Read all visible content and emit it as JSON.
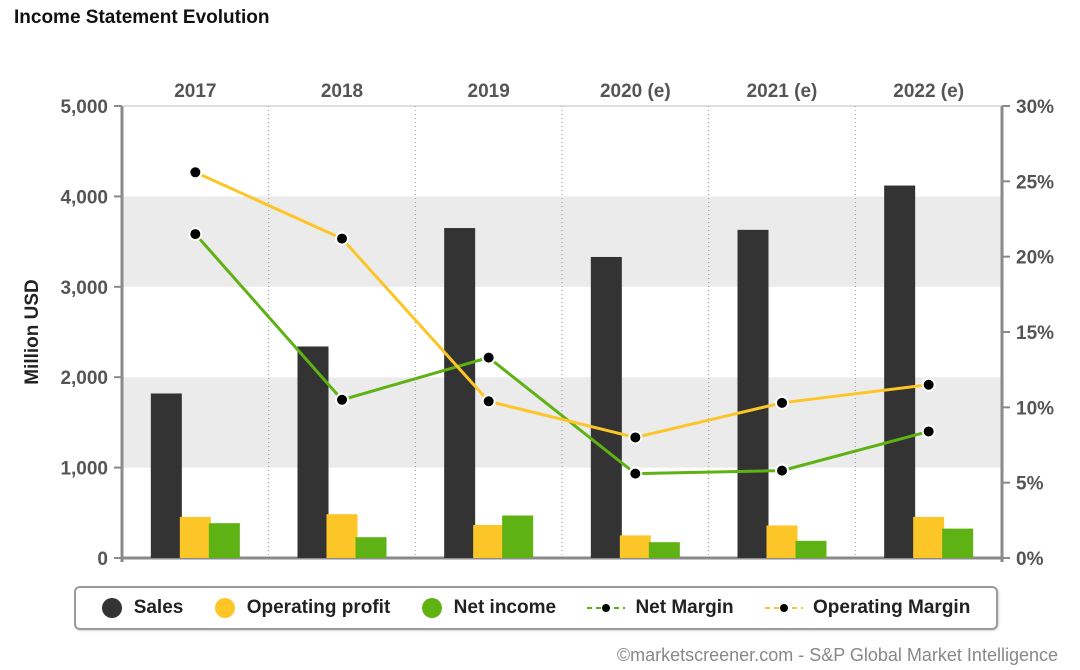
{
  "chart_data": {
    "type": "bar",
    "title": "Income Statement Evolution",
    "categories": [
      "2017",
      "2018",
      "2019",
      "2020 (e)",
      "2021 (e)",
      "2022 (e)"
    ],
    "ylabel": "Million USD",
    "ylim": [
      0,
      5000
    ],
    "y_ticks": [
      "0",
      "1,000",
      "2,000",
      "3,000",
      "4,000",
      "5,000"
    ],
    "y2lim": [
      0,
      30
    ],
    "y2_ticks": [
      "0%",
      "5%",
      "10%",
      "15%",
      "20%",
      "25%",
      "30%"
    ],
    "series": [
      {
        "name": "Sales",
        "kind": "bar",
        "axis": "left",
        "color": "#333333",
        "values": [
          1820,
          2340,
          3650,
          3330,
          3630,
          4120
        ]
      },
      {
        "name": "Operating profit",
        "kind": "bar",
        "axis": "left",
        "color": "#FCC629",
        "values": [
          455,
          485,
          365,
          250,
          360,
          455
        ]
      },
      {
        "name": "Net income",
        "kind": "bar",
        "axis": "left",
        "color": "#5FB214",
        "values": [
          385,
          230,
          470,
          175,
          190,
          325
        ]
      },
      {
        "name": "Net Margin",
        "kind": "line",
        "axis": "right",
        "color": "#5FB214",
        "values": [
          21.5,
          10.5,
          13.3,
          5.6,
          5.8,
          8.4
        ]
      },
      {
        "name": "Operating Margin",
        "kind": "line",
        "axis": "right",
        "color": "#FCC629",
        "values": [
          25.6,
          21.2,
          10.4,
          8.0,
          10.3,
          11.5
        ]
      }
    ],
    "legend_position": "bottom"
  },
  "footer": "©marketscreener.com - S&P Global Market Intelligence"
}
